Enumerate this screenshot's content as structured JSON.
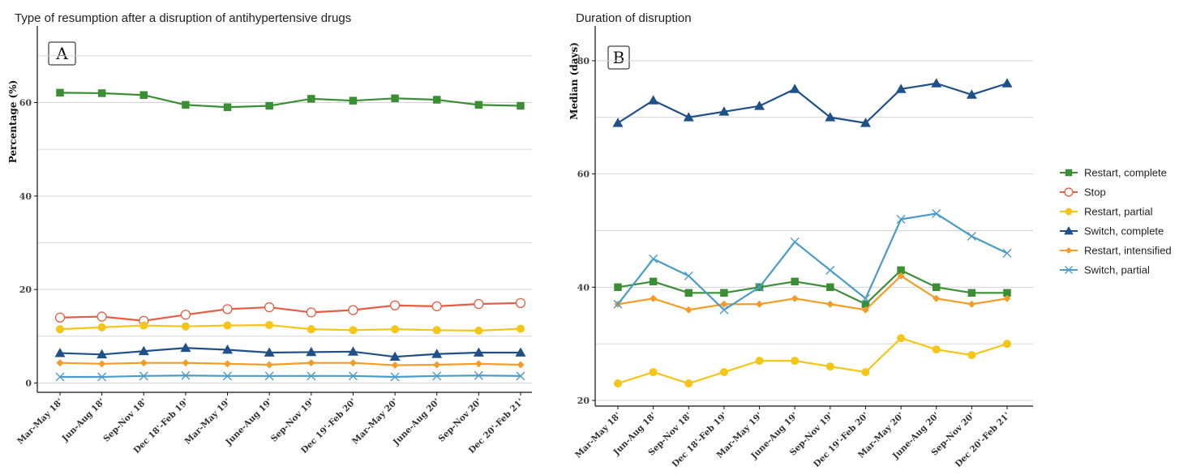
{
  "chart_data": [
    {
      "type": "line",
      "panel": "A",
      "title": "Type of resumption after a disruption of antihypertensive drugs",
      "ylabel": "Percentage (%)",
      "xlabel": "",
      "ylim": [
        -2,
        75
      ],
      "yticks": [
        0,
        20,
        40,
        60
      ],
      "grid": true,
      "categories": [
        "Mar-May 18'",
        "Jun-Aug 18'",
        "Sep-Nov 18'",
        "Dec 18'-Feb 19'",
        "Mar-May 19'",
        "June-Aug 19'",
        "Sep-Nov 19'",
        "Dec 19'-Feb 20'",
        "Mar-May 20'",
        "June-Aug 20'",
        "Sep-Nov 20'",
        "Dec 20'-Feb 21'"
      ],
      "series": [
        {
          "name": "Restart, complete",
          "color": "#3a8f34",
          "marker": "square",
          "values": [
            62.1,
            62.0,
            61.6,
            59.5,
            59.0,
            59.3,
            60.8,
            60.4,
            60.9,
            60.6,
            59.5,
            59.3
          ]
        },
        {
          "name": "Stop",
          "color": "#e35e45",
          "marker": "circle-open",
          "values": [
            14.0,
            14.2,
            13.3,
            14.6,
            15.8,
            16.2,
            15.1,
            15.6,
            16.6,
            16.4,
            16.9,
            17.1
          ]
        },
        {
          "name": "Restart, partial",
          "color": "#f5c518",
          "marker": "circle",
          "values": [
            11.5,
            11.9,
            12.3,
            12.1,
            12.3,
            12.4,
            11.5,
            11.3,
            11.5,
            11.3,
            11.2,
            11.6
          ]
        },
        {
          "name": "Switch, complete",
          "color": "#1f5088",
          "marker": "triangle",
          "values": [
            6.4,
            6.1,
            6.8,
            7.5,
            7.1,
            6.5,
            6.6,
            6.7,
            5.6,
            6.2,
            6.5,
            6.5
          ]
        },
        {
          "name": "Restart, intensified",
          "color": "#f39c27",
          "marker": "diamond",
          "values": [
            4.3,
            4.1,
            4.3,
            4.3,
            4.1,
            3.9,
            4.3,
            4.3,
            3.8,
            3.9,
            4.1,
            3.9
          ]
        },
        {
          "name": "Switch, partial",
          "color": "#4b9cc6",
          "marker": "x",
          "values": [
            1.3,
            1.3,
            1.5,
            1.6,
            1.5,
            1.5,
            1.5,
            1.5,
            1.3,
            1.5,
            1.6,
            1.5
          ]
        }
      ]
    },
    {
      "type": "line",
      "panel": "B",
      "title": "Duration of disruption",
      "ylabel": "Median (days)",
      "xlabel": "",
      "ylim": [
        19,
        85
      ],
      "yticks": [
        20,
        40,
        60,
        80
      ],
      "grid": true,
      "categories": [
        "Mar-May 18'",
        "Jun-Aug 18'",
        "Sep-Nov 18'",
        "Dec 18'-Feb 19'",
        "Mar-May 19'",
        "June-Aug 19'",
        "Sep-Nov 19'",
        "Dec 19'-Feb 20'",
        "Mar-May 20'",
        "June-Aug 20'",
        "Sep-Nov 20'",
        "Dec 20'-Feb 21'"
      ],
      "series": [
        {
          "name": "Restart, complete",
          "color": "#3a8f34",
          "marker": "square",
          "values": [
            40,
            41,
            39,
            39,
            40,
            41,
            40,
            37,
            43,
            40,
            39,
            39
          ]
        },
        {
          "name": "Stop",
          "color": "#e35e45",
          "marker": "circle-open",
          "values": [
            null,
            null,
            null,
            null,
            null,
            null,
            null,
            null,
            null,
            null,
            null,
            null
          ]
        },
        {
          "name": "Restart, partial",
          "color": "#f5c518",
          "marker": "circle",
          "values": [
            23,
            25,
            23,
            25,
            27,
            27,
            26,
            25,
            31,
            29,
            28,
            30
          ]
        },
        {
          "name": "Switch, complete",
          "color": "#1f5088",
          "marker": "triangle",
          "values": [
            69,
            73,
            70,
            71,
            72,
            75,
            70,
            69,
            75,
            76,
            74,
            76
          ]
        },
        {
          "name": "Restart, intensified",
          "color": "#f39c27",
          "marker": "diamond",
          "values": [
            37,
            38,
            36,
            37,
            37,
            38,
            37,
            36,
            42,
            38,
            37,
            38
          ]
        },
        {
          "name": "Switch, partial",
          "color": "#4b9cc6",
          "marker": "x",
          "values": [
            37,
            45,
            42,
            36,
            40,
            48,
            43,
            38,
            52,
            53,
            49,
            46
          ]
        }
      ]
    }
  ],
  "legend": {
    "placement": "right",
    "items": [
      {
        "label": "Restart, complete",
        "color": "#3a8f34",
        "marker": "square"
      },
      {
        "label": "Stop",
        "color": "#e35e45",
        "marker": "circle-open"
      },
      {
        "label": "Restart, partial",
        "color": "#f5c518",
        "marker": "circle"
      },
      {
        "label": "Switch, complete",
        "color": "#1f5088",
        "marker": "triangle"
      },
      {
        "label": "Restart, intensified",
        "color": "#f39c27",
        "marker": "diamond"
      },
      {
        "label": "Switch, partial",
        "color": "#4b9cc6",
        "marker": "x"
      }
    ]
  }
}
